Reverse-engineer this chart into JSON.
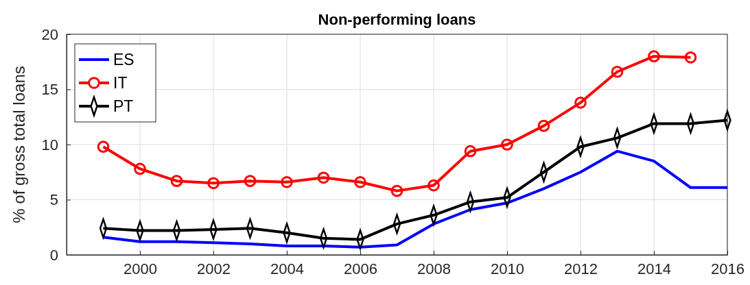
{
  "chart_data": {
    "type": "line",
    "title": "Non-performing loans",
    "ylabel": "% of gross total loans",
    "x": [
      1999,
      2000,
      2001,
      2002,
      2003,
      2004,
      2005,
      2006,
      2007,
      2008,
      2009,
      2010,
      2011,
      2012,
      2013,
      2014,
      2015,
      2016
    ],
    "series": [
      {
        "name": "ES",
        "color": "#0000ff",
        "marker": "none",
        "values": [
          1.6,
          1.2,
          1.2,
          1.1,
          1.0,
          0.8,
          0.8,
          0.7,
          0.9,
          2.8,
          4.1,
          4.7,
          6.0,
          7.5,
          9.4,
          8.5,
          6.1,
          6.1
        ]
      },
      {
        "name": "IT",
        "color": "#ff0000",
        "marker": "circle",
        "values": [
          9.8,
          7.8,
          6.7,
          6.5,
          6.7,
          6.6,
          7.0,
          6.6,
          5.8,
          6.3,
          9.4,
          10.0,
          11.7,
          13.8,
          16.6,
          18.0,
          17.9,
          null
        ]
      },
      {
        "name": "PT",
        "color": "#000000",
        "marker": "diamond",
        "values": [
          2.4,
          2.2,
          2.2,
          2.3,
          2.4,
          2.0,
          1.5,
          1.4,
          2.8,
          3.6,
          4.8,
          5.2,
          7.5,
          9.8,
          10.6,
          11.9,
          11.9,
          12.2
        ]
      }
    ],
    "xlim": [
      1998,
      2016
    ],
    "xticks": [
      2000,
      2002,
      2004,
      2006,
      2008,
      2010,
      2012,
      2014,
      2016
    ],
    "ylim": [
      0,
      20
    ],
    "yticks": [
      0,
      5,
      10,
      15,
      20
    ],
    "grid": true,
    "legend": "top left"
  }
}
